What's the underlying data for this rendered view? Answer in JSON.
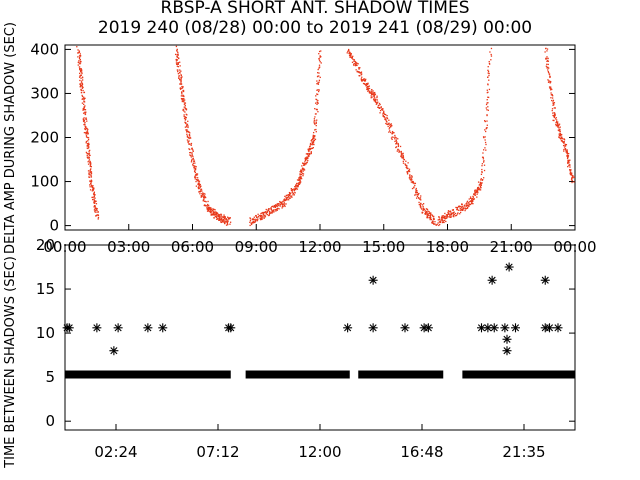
{
  "title": "RBSP-A SHORT ANT. SHADOW TIMES",
  "subtitle": "2019 240 (08/28) 00:00 to 2019 241 (08/29) 00:00",
  "colors": {
    "scatter": "#e8381a",
    "axis": "#000000",
    "stars": "#000000"
  },
  "chart_data": [
    {
      "type": "scatter",
      "ylabel": "DELTA AMP DURING SHADOW (SEC)",
      "xlim": [
        0,
        24
      ],
      "ylim": [
        -10,
        410
      ],
      "x_ticks": [
        "00:00",
        "03:00",
        "06:00",
        "09:00",
        "12:00",
        "15:00",
        "18:00",
        "21:00",
        "00:00"
      ],
      "y_ticks": [
        "0",
        "100",
        "200",
        "300",
        "400"
      ],
      "series": [
        {
          "description": "falling branches",
          "x": [
            0.6,
            0.8,
            1.0,
            1.2,
            1.5
          ],
          "y": [
            400,
            300,
            200,
            100,
            20
          ]
        },
        {
          "x": [
            5.2,
            5.5,
            5.8,
            6.2,
            6.7,
            7.2,
            7.7
          ],
          "y": [
            400,
            300,
            200,
            100,
            40,
            20,
            10
          ]
        },
        {
          "x": [
            8.7,
            9.5,
            10.2,
            10.9,
            11.3,
            11.7,
            12.0
          ],
          "y": [
            10,
            30,
            50,
            90,
            150,
            200,
            400
          ]
        },
        {
          "x": [
            13.3,
            14.0,
            14.6,
            15.3,
            16.1,
            16.8,
            17.4
          ],
          "y": [
            400,
            330,
            290,
            220,
            130,
            40,
            10
          ]
        },
        {
          "x": [
            17.5,
            18.2,
            19.0,
            19.6,
            20.0
          ],
          "y": [
            10,
            30,
            50,
            100,
            400
          ]
        },
        {
          "x": [
            22.6,
            23.0,
            23.5,
            23.9
          ],
          "y": [
            400,
            250,
            180,
            100
          ]
        }
      ]
    },
    {
      "type": "scatter",
      "ylabel": "TIME BETWEEN SHADOWS (SEC)",
      "xlim": [
        0,
        24
      ],
      "ylim": [
        -1,
        20
      ],
      "x_ticks": [
        "02:24",
        "07:12",
        "12:00",
        "16:48",
        "21:35"
      ],
      "y_ticks": [
        "0",
        "5",
        "10",
        "15",
        "20"
      ],
      "baseline": {
        "value": 5.3,
        "gaps": [
          [
            7.8,
            8.5
          ],
          [
            13.4,
            13.8
          ],
          [
            17.8,
            18.7
          ]
        ]
      },
      "points": [
        [
          0.1,
          10.6
        ],
        [
          0.2,
          10.6
        ],
        [
          1.5,
          10.6
        ],
        [
          2.3,
          8
        ],
        [
          2.5,
          10.6
        ],
        [
          3.9,
          10.6
        ],
        [
          4.6,
          10.6
        ],
        [
          7.7,
          10.6
        ],
        [
          7.8,
          10.6
        ],
        [
          13.3,
          10.6
        ],
        [
          14.5,
          16
        ],
        [
          14.5,
          10.6
        ],
        [
          16.0,
          10.6
        ],
        [
          16.9,
          10.6
        ],
        [
          17.1,
          10.6
        ],
        [
          19.6,
          10.6
        ],
        [
          19.9,
          10.6
        ],
        [
          20.1,
          16
        ],
        [
          20.2,
          10.6
        ],
        [
          20.7,
          10.6
        ],
        [
          20.8,
          9.3
        ],
        [
          20.8,
          8
        ],
        [
          20.9,
          17.5
        ],
        [
          21.2,
          10.6
        ],
        [
          22.6,
          16
        ],
        [
          22.6,
          10.6
        ],
        [
          22.8,
          10.6
        ],
        [
          23.2,
          10.6
        ]
      ]
    }
  ]
}
